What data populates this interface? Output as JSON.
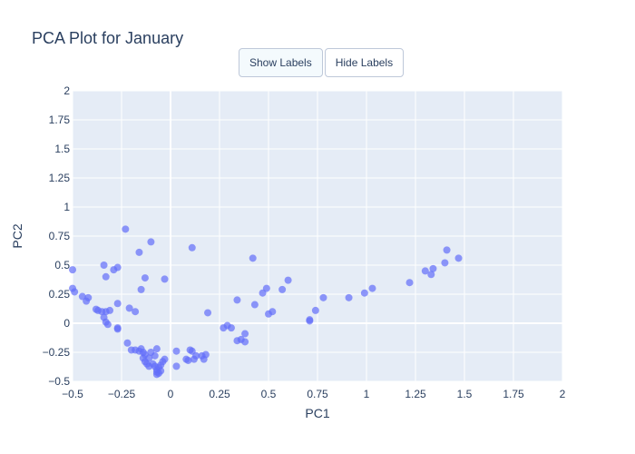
{
  "chart_data": {
    "type": "scatter",
    "title": "PCA Plot for January",
    "xlabel": "PC1",
    "ylabel": "PC2",
    "xlim": [
      -0.5,
      2
    ],
    "ylim": [
      -0.5,
      2
    ],
    "xticks": [
      -0.5,
      -0.25,
      0,
      0.25,
      0.5,
      0.75,
      1,
      1.25,
      1.5,
      1.75,
      2
    ],
    "yticks": [
      -0.5,
      -0.25,
      0,
      0.25,
      0.5,
      0.75,
      1,
      1.25,
      1.5,
      1.75,
      2
    ],
    "xtick_labels": [
      "−0.5",
      "−0.25",
      "0",
      "0.25",
      "0.5",
      "0.75",
      "1",
      "1.25",
      "1.5",
      "1.75",
      "2"
    ],
    "ytick_labels": [
      "−0.5",
      "−0.25",
      "0",
      "0.25",
      "0.5",
      "0.75",
      "1",
      "1.25",
      "1.5",
      "1.75",
      "2"
    ],
    "grid": true,
    "colors": {
      "marker": "#636efa",
      "plot_bg": "#e5ecf6",
      "grid": "#ffffff",
      "text": "#2a3f5f"
    },
    "points": [
      [
        -0.5,
        0.46
      ],
      [
        -0.5,
        0.3
      ],
      [
        -0.49,
        0.27
      ],
      [
        -0.45,
        0.23
      ],
      [
        -0.42,
        0.22
      ],
      [
        -0.43,
        0.19
      ],
      [
        -0.38,
        0.12
      ],
      [
        -0.37,
        0.11
      ],
      [
        -0.35,
        0.1
      ],
      [
        -0.34,
        0.05
      ],
      [
        -0.33,
        0.01
      ],
      [
        -0.32,
        -0.01
      ],
      [
        -0.33,
        0.1
      ],
      [
        -0.31,
        0.11
      ],
      [
        -0.34,
        0.5
      ],
      [
        -0.33,
        0.4
      ],
      [
        -0.29,
        0.46
      ],
      [
        -0.27,
        0.48
      ],
      [
        -0.27,
        0.17
      ],
      [
        -0.27,
        -0.04
      ],
      [
        -0.27,
        -0.05
      ],
      [
        -0.23,
        0.81
      ],
      [
        -0.22,
        -0.17
      ],
      [
        -0.21,
        0.13
      ],
      [
        -0.18,
        0.1
      ],
      [
        -0.16,
        0.61
      ],
      [
        -0.15,
        0.29
      ],
      [
        -0.13,
        0.39
      ],
      [
        -0.1,
        0.7
      ],
      [
        -0.03,
        0.38
      ],
      [
        -0.2,
        -0.23
      ],
      [
        -0.18,
        -0.23
      ],
      [
        -0.16,
        -0.24
      ],
      [
        -0.15,
        -0.22
      ],
      [
        -0.14,
        -0.25
      ],
      [
        -0.14,
        -0.3
      ],
      [
        -0.13,
        -0.27
      ],
      [
        -0.13,
        -0.33
      ],
      [
        -0.12,
        -0.35
      ],
      [
        -0.11,
        -0.3
      ],
      [
        -0.11,
        -0.37
      ],
      [
        -0.1,
        -0.25
      ],
      [
        -0.09,
        -0.35
      ],
      [
        -0.08,
        -0.37
      ],
      [
        -0.07,
        -0.4
      ],
      [
        -0.07,
        -0.42
      ],
      [
        -0.07,
        -0.44
      ],
      [
        -0.06,
        -0.38
      ],
      [
        -0.06,
        -0.43
      ],
      [
        -0.05,
        -0.41
      ],
      [
        -0.05,
        -0.36
      ],
      [
        -0.04,
        -0.33
      ],
      [
        -0.03,
        -0.31
      ],
      [
        -0.07,
        -0.22
      ],
      [
        -0.08,
        -0.28
      ],
      [
        0.03,
        -0.24
      ],
      [
        0.03,
        -0.37
      ],
      [
        0.08,
        -0.31
      ],
      [
        0.09,
        -0.32
      ],
      [
        0.1,
        -0.23
      ],
      [
        0.11,
        -0.24
      ],
      [
        0.12,
        -0.31
      ],
      [
        0.13,
        -0.28
      ],
      [
        0.16,
        -0.28
      ],
      [
        0.17,
        -0.31
      ],
      [
        0.18,
        -0.27
      ],
      [
        0.19,
        0.09
      ],
      [
        0.11,
        0.65
      ],
      [
        0.27,
        -0.04
      ],
      [
        0.29,
        -0.02
      ],
      [
        0.31,
        -0.04
      ],
      [
        0.34,
        0.2
      ],
      [
        0.34,
        -0.15
      ],
      [
        0.36,
        -0.14
      ],
      [
        0.38,
        -0.16
      ],
      [
        0.38,
        -0.09
      ],
      [
        0.42,
        0.56
      ],
      [
        0.43,
        0.16
      ],
      [
        0.47,
        0.26
      ],
      [
        0.49,
        0.3
      ],
      [
        0.5,
        0.08
      ],
      [
        0.52,
        0.1
      ],
      [
        0.57,
        0.29
      ],
      [
        0.6,
        0.37
      ],
      [
        0.71,
        0.02
      ],
      [
        0.71,
        0.03
      ],
      [
        0.74,
        0.11
      ],
      [
        0.78,
        0.22
      ],
      [
        0.91,
        0.22
      ],
      [
        0.99,
        0.26
      ],
      [
        1.03,
        0.3
      ],
      [
        1.22,
        0.35
      ],
      [
        1.3,
        0.45
      ],
      [
        1.33,
        0.42
      ],
      [
        1.34,
        0.47
      ],
      [
        1.4,
        0.52
      ],
      [
        1.41,
        0.63
      ],
      [
        1.47,
        0.56
      ]
    ]
  },
  "buttons": {
    "show_labels": "Show Labels",
    "hide_labels": "Hide Labels"
  }
}
